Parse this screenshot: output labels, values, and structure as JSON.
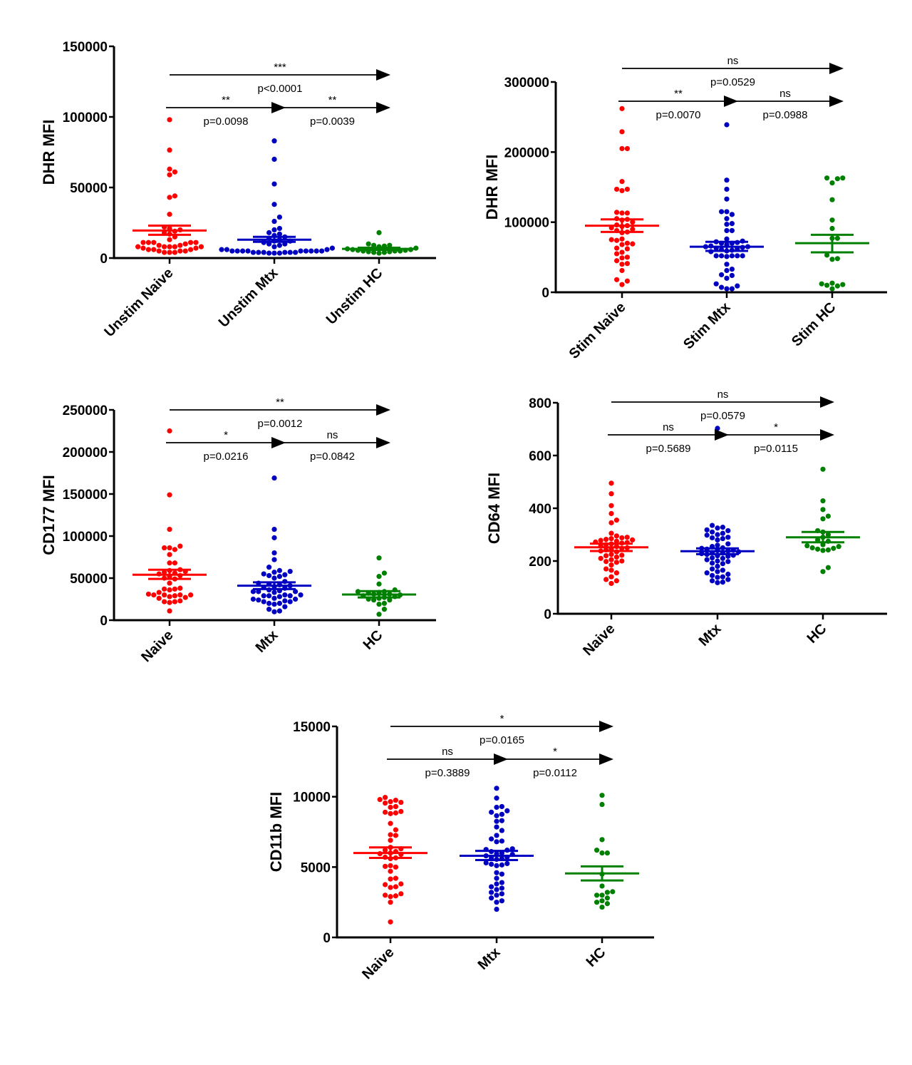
{
  "colors": {
    "naive": "#ff0000",
    "mtx": "#0000c0",
    "hc": "#008000",
    "axis": "#000000"
  },
  "chart_data": [
    {
      "type": "scatter",
      "subtype": "dot-plot with mean and SEM",
      "title": "",
      "xlabel": "",
      "ylabel": "DHR MFI",
      "ylim": [
        0,
        150000
      ],
      "yticks": [
        0,
        50000,
        100000,
        150000
      ],
      "ytick_labels": [
        "0",
        "50000",
        "100000",
        "150000"
      ],
      "categories": [
        "Unstim Naive",
        "Unstim Mtx",
        "Unstim HC"
      ],
      "series": [
        {
          "name": "Unstim Naive",
          "color_key": "naive",
          "mean": 19500,
          "sem_low": 16500,
          "sem_high": 23000,
          "values": [
            98000,
            76500,
            63000,
            61000,
            59000,
            44000,
            43000,
            31000,
            22000,
            21000,
            20000,
            19000,
            18000,
            17000,
            15000,
            13000,
            11000,
            11000,
            11000,
            11000,
            11000,
            10000,
            9000,
            9000,
            8000,
            8000,
            8000,
            8000,
            8000,
            7000,
            7000,
            6000,
            6000,
            6000,
            5000,
            5000,
            5000,
            4000,
            4000,
            4000
          ]
        },
        {
          "name": "Unstim Mtx",
          "color_key": "mtx",
          "mean": 13000,
          "sem_low": 11500,
          "sem_high": 15000,
          "values": [
            83000,
            70000,
            52500,
            38000,
            29000,
            26000,
            21000,
            20000,
            18000,
            17000,
            16000,
            15000,
            14000,
            13000,
            12000,
            12000,
            11000,
            10000,
            10000,
            9000,
            8000,
            7000,
            6000,
            6000,
            6000,
            5000,
            5000,
            5000,
            5000,
            5000,
            5000,
            5000,
            5000,
            5000,
            4000,
            4000,
            4000,
            4000,
            4000,
            4000,
            3500,
            3500,
            3500
          ]
        },
        {
          "name": "Unstim HC",
          "color_key": "hc",
          "mean": 6500,
          "sem_low": 5800,
          "sem_high": 7300,
          "values": [
            18000,
            10000,
            9000,
            9000,
            8500,
            8000,
            7000,
            6500,
            6000,
            6000,
            5500,
            5500,
            5000,
            5000,
            5000,
            4500,
            4500,
            4000,
            4000,
            3500
          ]
        }
      ],
      "comparisons": [
        {
          "from": "Unstim Naive",
          "to": "Unstim HC",
          "level": "top",
          "sig": "***",
          "p": "p<0.0001"
        },
        {
          "from": "Unstim Naive",
          "to": "Unstim Mtx",
          "level": "mid",
          "sig": "**",
          "p": "p=0.0098"
        },
        {
          "from": "Unstim Mtx",
          "to": "Unstim HC",
          "level": "mid",
          "sig": "**",
          "p": "p=0.0039"
        }
      ]
    },
    {
      "type": "scatter",
      "subtype": "dot-plot with mean and SEM",
      "title": "",
      "xlabel": "",
      "ylabel": "DHR MFI",
      "ylim": [
        0,
        300000
      ],
      "yticks": [
        0,
        100000,
        200000,
        300000
      ],
      "ytick_labels": [
        "0",
        "100000",
        "200000",
        "300000"
      ],
      "categories": [
        "Stim Naive",
        "Stim Mtx",
        "Stim HC"
      ],
      "series": [
        {
          "name": "Stim Naive",
          "color_key": "naive",
          "mean": 95000,
          "sem_low": 86000,
          "sem_high": 104000,
          "values": [
            262000,
            229000,
            205000,
            205000,
            158000,
            147000,
            147000,
            145000,
            113000,
            113000,
            114000,
            105000,
            104000,
            103000,
            100000,
            96000,
            95000,
            94000,
            92000,
            90000,
            88000,
            86000,
            85000,
            76000,
            75000,
            74000,
            70000,
            69000,
            68000,
            63000,
            62000,
            57000,
            55000,
            50000,
            49000,
            45000,
            41000,
            40000,
            31000,
            18000,
            16000,
            11000
          ]
        },
        {
          "name": "Stim Mtx",
          "color_key": "mtx",
          "mean": 65000,
          "sem_low": 59000,
          "sem_high": 72000,
          "values": [
            239000,
            160000,
            147000,
            133000,
            115000,
            115000,
            111000,
            105000,
            98000,
            97000,
            88000,
            88000,
            76000,
            73000,
            72000,
            71000,
            70000,
            70000,
            68000,
            66000,
            65000,
            65000,
            64000,
            63000,
            62000,
            61000,
            60000,
            59000,
            58000,
            52000,
            52000,
            52000,
            52000,
            52000,
            51000,
            40000,
            33000,
            31000,
            25000,
            24000,
            20000,
            12000,
            9000,
            7000,
            5000,
            5000
          ]
        },
        {
          "name": "Stim HC",
          "color_key": "hc",
          "mean": 70000,
          "sem_low": 57000,
          "sem_high": 82000,
          "values": [
            163000,
            163000,
            162000,
            156000,
            132000,
            103000,
            91000,
            77000,
            77000,
            53000,
            48000,
            47000,
            13000,
            12000,
            11000,
            10000,
            9000,
            5000
          ]
        }
      ],
      "comparisons": [
        {
          "from": "Stim Naive",
          "to": "Stim HC",
          "level": "top",
          "sig": "ns",
          "p": "p=0.0529"
        },
        {
          "from": "Stim Naive",
          "to": "Stim Mtx",
          "level": "mid",
          "sig": "**",
          "p": "p=0.0070"
        },
        {
          "from": "Stim Mtx",
          "to": "Stim HC",
          "level": "mid",
          "sig": "ns",
          "p": "p=0.0988"
        }
      ]
    },
    {
      "type": "scatter",
      "subtype": "dot-plot with mean and SEM",
      "title": "",
      "xlabel": "",
      "ylabel": "CD177 MFI",
      "ylim": [
        0,
        250000
      ],
      "yticks": [
        0,
        50000,
        100000,
        150000,
        200000,
        250000
      ],
      "ytick_labels": [
        "0",
        "50000",
        "100000",
        "150000",
        "200000",
        "250000"
      ],
      "categories": [
        "Naive",
        "Mtx",
        "HC"
      ],
      "series": [
        {
          "name": "Naive",
          "color_key": "naive",
          "mean": 54000,
          "sem_low": 49000,
          "sem_high": 60000,
          "values": [
            225000,
            149000,
            108000,
            88000,
            86000,
            86000,
            84000,
            78000,
            68000,
            68000,
            60000,
            59000,
            58000,
            57000,
            56000,
            55000,
            53000,
            52000,
            50000,
            49000,
            44000,
            38000,
            37000,
            37000,
            36000,
            33000,
            31000,
            30000,
            30000,
            30000,
            30000,
            29000,
            28000,
            27000,
            26000,
            23000,
            22000,
            22000,
            21000,
            11000
          ]
        },
        {
          "name": "Mtx",
          "color_key": "mtx",
          "mean": 41000,
          "sem_low": 37000,
          "sem_high": 45000,
          "values": [
            169000,
            108000,
            98000,
            80000,
            72000,
            63000,
            59000,
            58000,
            57000,
            55000,
            54000,
            53000,
            52000,
            50000,
            46000,
            44000,
            43000,
            42000,
            41000,
            40000,
            39000,
            38000,
            36000,
            35000,
            34000,
            34000,
            34000,
            33000,
            30000,
            30000,
            29000,
            29000,
            29000,
            28000,
            26000,
            25000,
            25000,
            24000,
            23000,
            22000,
            22000,
            20000,
            20000,
            19000,
            16000,
            13000,
            11000,
            10000
          ]
        },
        {
          "name": "HC",
          "color_key": "hc",
          "mean": 30500,
          "sem_low": 27000,
          "sem_high": 34500,
          "values": [
            74000,
            56000,
            52000,
            43000,
            36000,
            34000,
            34000,
            33000,
            32000,
            31000,
            31000,
            30000,
            29000,
            28000,
            27000,
            26000,
            25000,
            24000,
            24000,
            20000,
            19000,
            13000,
            7000
          ]
        }
      ],
      "comparisons": [
        {
          "from": "Naive",
          "to": "HC",
          "level": "top",
          "sig": "**",
          "p": "p=0.0012"
        },
        {
          "from": "Naive",
          "to": "Mtx",
          "level": "mid",
          "sig": "*",
          "p": "p=0.0216"
        },
        {
          "from": "Mtx",
          "to": "HC",
          "level": "mid",
          "sig": "ns",
          "p": "p=0.0842"
        }
      ]
    },
    {
      "type": "scatter",
      "subtype": "dot-plot with mean and SEM",
      "title": "",
      "xlabel": "",
      "ylabel": "CD64 MFI",
      "ylim": [
        0,
        800
      ],
      "yticks": [
        0,
        200,
        400,
        600,
        800
      ],
      "ytick_labels": [
        "0",
        "200",
        "400",
        "600",
        "800"
      ],
      "categories": [
        "Naive",
        "Mtx",
        "HC"
      ],
      "series": [
        {
          "name": "Naive",
          "color_key": "naive",
          "mean": 252,
          "sem_low": 238,
          "sem_high": 266,
          "values": [
            495,
            455,
            410,
            380,
            355,
            345,
            305,
            295,
            290,
            288,
            285,
            282,
            280,
            278,
            275,
            272,
            270,
            268,
            265,
            262,
            258,
            255,
            250,
            248,
            245,
            242,
            238,
            235,
            225,
            222,
            220,
            215,
            210,
            205,
            200,
            198,
            195,
            185,
            170,
            165,
            155,
            140,
            130,
            125,
            115
          ]
        },
        {
          "name": "Mtx",
          "color_key": "mtx",
          "mean": 237,
          "sem_low": 226,
          "sem_high": 248,
          "values": [
            703,
            335,
            328,
            325,
            318,
            315,
            310,
            305,
            300,
            298,
            290,
            288,
            285,
            280,
            265,
            260,
            255,
            250,
            248,
            245,
            242,
            240,
            238,
            235,
            232,
            230,
            228,
            225,
            222,
            220,
            218,
            212,
            210,
            205,
            200,
            198,
            192,
            190,
            180,
            170,
            165,
            160,
            155,
            150,
            145,
            140,
            138,
            130,
            125,
            120,
            118
          ]
        },
        {
          "name": "HC",
          "color_key": "hc",
          "mean": 290,
          "sem_low": 271,
          "sem_high": 310,
          "values": [
            548,
            428,
            395,
            370,
            360,
            315,
            310,
            300,
            290,
            280,
            275,
            262,
            258,
            255,
            250,
            248,
            245,
            242,
            240,
            175,
            160
          ]
        }
      ],
      "comparisons": [
        {
          "from": "Naive",
          "to": "HC",
          "level": "top",
          "sig": "ns",
          "p": "p=0.0579"
        },
        {
          "from": "Naive",
          "to": "Mtx",
          "level": "mid",
          "sig": "ns",
          "p": "p=0.5689"
        },
        {
          "from": "Mtx",
          "to": "HC",
          "level": "mid",
          "sig": "*",
          "p": "p=0.0115"
        }
      ]
    },
    {
      "type": "scatter",
      "subtype": "dot-plot with mean and SEM",
      "title": "",
      "xlabel": "",
      "ylabel": "CD11b MFI",
      "ylim": [
        0,
        15000
      ],
      "yticks": [
        0,
        5000,
        10000,
        15000
      ],
      "ytick_labels": [
        "0",
        "5000",
        "10000",
        "15000"
      ],
      "categories": [
        "Naive",
        "Mtx",
        "HC"
      ],
      "series": [
        {
          "name": "Naive",
          "color_key": "naive",
          "mean": 6000,
          "sem_low": 5650,
          "sem_high": 6400,
          "values": [
            9950,
            9800,
            9750,
            9650,
            9600,
            9550,
            9300,
            9250,
            8950,
            8900,
            8850,
            8800,
            8100,
            7650,
            7300,
            7250,
            6900,
            6400,
            6300,
            6200,
            6100,
            6000,
            5950,
            5900,
            5700,
            5650,
            5600,
            5100,
            5050,
            5000,
            4700,
            4200,
            4150,
            3800,
            3750,
            3600,
            3550,
            3100,
            3000,
            2950,
            2900,
            2500,
            1100
          ]
        },
        {
          "name": "Mtx",
          "color_key": "mtx",
          "mean": 5800,
          "sem_low": 5500,
          "sem_high": 6150,
          "values": [
            10600,
            9900,
            9300,
            9250,
            9000,
            8900,
            8750,
            8650,
            8300,
            8250,
            7850,
            7600,
            7250,
            7000,
            6850,
            6800,
            6300,
            6250,
            6200,
            6100,
            6000,
            5950,
            5900,
            5800,
            5700,
            5650,
            5600,
            5550,
            5300,
            5250,
            5200,
            5150,
            5100,
            4600,
            4500,
            4200,
            3900,
            3800,
            3600,
            3500,
            3400,
            3200,
            3100,
            3000,
            2800,
            2600,
            2500,
            2000
          ]
        },
        {
          "name": "HC",
          "color_key": "hc",
          "mean": 4550,
          "sem_low": 4050,
          "sem_high": 5050,
          "values": [
            10100,
            9450,
            6950,
            6200,
            6000,
            6000,
            4500,
            3650,
            3250,
            3200,
            3000,
            3000,
            2800,
            2600,
            2500,
            2400,
            2150
          ]
        }
      ],
      "comparisons": [
        {
          "from": "Naive",
          "to": "HC",
          "level": "top",
          "sig": "*",
          "p": "p=0.0165"
        },
        {
          "from": "Naive",
          "to": "Mtx",
          "level": "mid",
          "sig": "ns",
          "p": "p=0.3889"
        },
        {
          "from": "Mtx",
          "to": "HC",
          "level": "mid",
          "sig": "*",
          "p": "p=0.0112"
        }
      ]
    }
  ]
}
